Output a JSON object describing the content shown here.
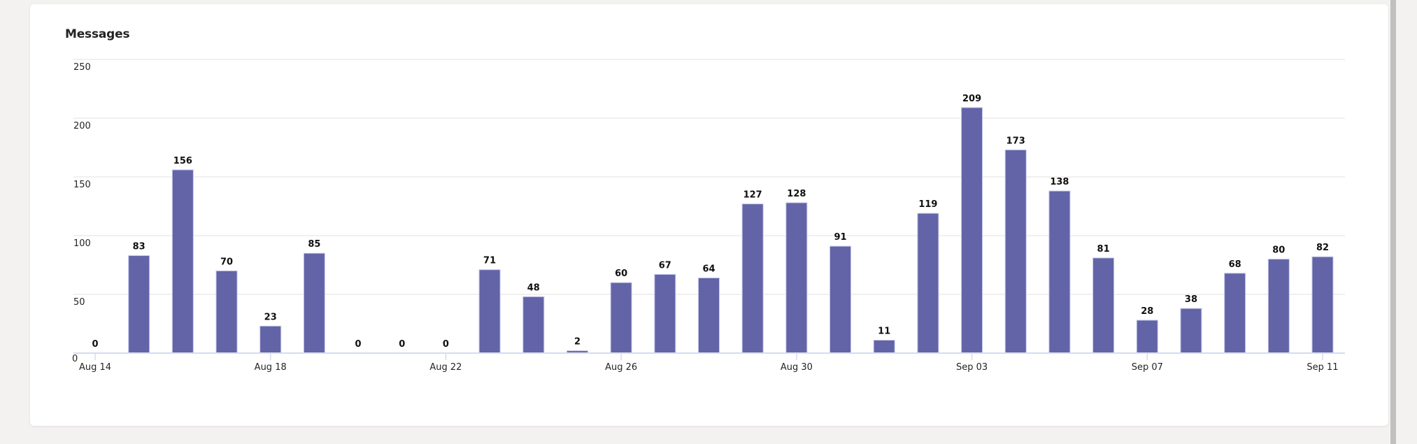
{
  "card": {
    "title": "Messages"
  },
  "colors": {
    "bar": "#6264A7",
    "bar_border": "#C5C7EA",
    "grid": "#EDEBE9",
    "axis": "#D6DCF0",
    "label": "#252423"
  },
  "chart_data": {
    "type": "bar",
    "title": "Messages",
    "xlabel": "",
    "ylabel": "",
    "ylim": [
      0,
      250
    ],
    "yticks": [
      0,
      50,
      100,
      150,
      200,
      250
    ],
    "grid": true,
    "legend": "none",
    "categories": [
      "Aug 14",
      "Aug 15",
      "Aug 16",
      "Aug 17",
      "Aug 18",
      "Aug 19",
      "Aug 20",
      "Aug 21",
      "Aug 22",
      "Aug 23",
      "Aug 24",
      "Aug 25",
      "Aug 26",
      "Aug 27",
      "Aug 28",
      "Aug 29",
      "Aug 30",
      "Aug 31",
      "Sep 01",
      "Sep 02",
      "Sep 03",
      "Sep 04",
      "Sep 05",
      "Sep 06",
      "Sep 07",
      "Sep 08",
      "Sep 09",
      "Sep 10",
      "Sep 11"
    ],
    "xtick_labels": [
      {
        "index": 0,
        "label": "Aug 14"
      },
      {
        "index": 4,
        "label": "Aug 18"
      },
      {
        "index": 8,
        "label": "Aug 22"
      },
      {
        "index": 12,
        "label": "Aug 26"
      },
      {
        "index": 16,
        "label": "Aug 30"
      },
      {
        "index": 20,
        "label": "Sep 03"
      },
      {
        "index": 24,
        "label": "Sep 07"
      },
      {
        "index": 28,
        "label": "Sep 11"
      }
    ],
    "values": [
      0,
      83,
      156,
      70,
      23,
      85,
      0,
      0,
      0,
      71,
      48,
      2,
      60,
      67,
      64,
      127,
      128,
      91,
      11,
      119,
      209,
      173,
      138,
      81,
      28,
      38,
      68,
      80,
      82
    ],
    "data_labels": true
  }
}
